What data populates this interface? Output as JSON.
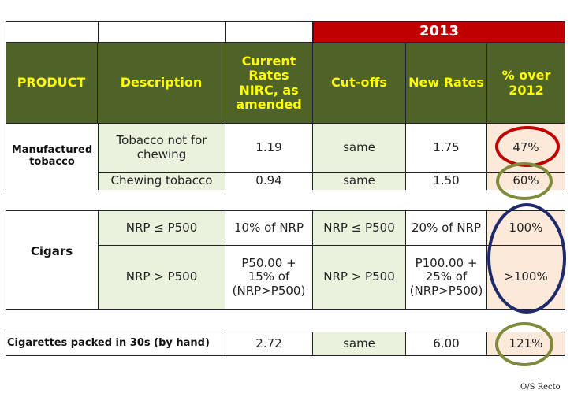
{
  "year_banner": "2013",
  "headers": {
    "product": "PRODUCT",
    "description": "Description",
    "current_rates": "Current Rates NIRC, as amended",
    "cutoffs": "Cut-offs",
    "new_rates": "New Rates",
    "pct_over": "% over 2012"
  },
  "manufactured": {
    "product": "Manufactured tobacco",
    "rows": [
      {
        "description": "Tobacco not for chewing",
        "current": "1.19",
        "cutoff": "same",
        "new_rate": "1.75",
        "pct": "47%"
      },
      {
        "description": "Chewing tobacco",
        "current": "0.94",
        "cutoff": "same",
        "new_rate": "1.50",
        "pct": "60%"
      }
    ]
  },
  "cigars": {
    "product": "Cigars",
    "rows": [
      {
        "description": "NRP ≤ P500",
        "current": "10% of NRP",
        "cutoff": "NRP ≤ P500",
        "new_rate": "20% of NRP",
        "pct": "100%"
      },
      {
        "description": "NRP > P500",
        "current": "P50.00 + 15% of (NRP>P500)",
        "cutoff": "NRP > P500",
        "new_rate": "P100.00 + 25% of (NRP>P500)",
        "pct": ">100%"
      }
    ]
  },
  "cigarettes": {
    "product": "Cigarettes packed in 30s (by hand)",
    "current": "2.72",
    "cutoff": "same",
    "new_rate": "6.00",
    "pct": "121%"
  },
  "footer": "O/S Recto",
  "colors": {
    "header_green": "#4f6228",
    "header_text": "#ffff00",
    "banner_red": "#c00000",
    "light_green": "#eaf1dd",
    "pink": "#fde9d9",
    "circle_red": "#c00000",
    "circle_olive": "#7f8a3a",
    "circle_navy": "#1f2a6b"
  }
}
